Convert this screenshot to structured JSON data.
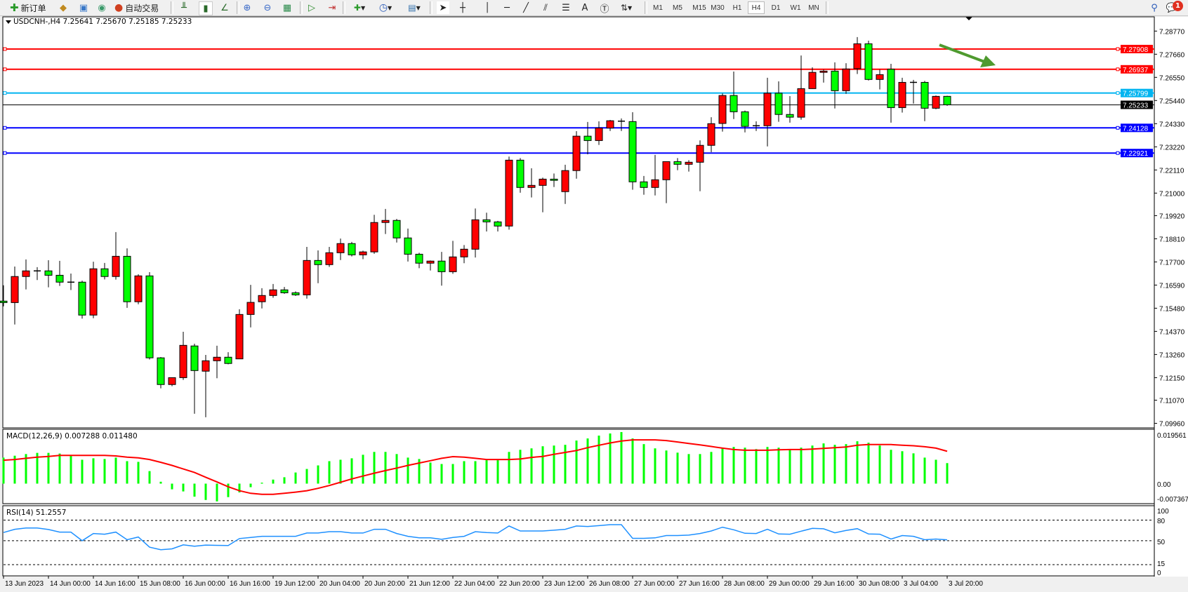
{
  "toolbar": {
    "new_order_label": "新订单",
    "auto_trading_label": "自动交易",
    "timeframes": [
      "M1",
      "M5",
      "M15",
      "M30",
      "H1",
      "H4",
      "D1",
      "W1",
      "MN"
    ],
    "active_timeframe": "H4",
    "notification_count": "1",
    "icons": [
      "new-order-icon",
      "market-watch-icon",
      "navigator-icon",
      "signals-icon",
      "auto-trading-icon",
      "bar-chart-icon",
      "candlestick-icon",
      "line-chart-icon",
      "zoom-in-icon",
      "zoom-out-icon",
      "tile-windows-icon",
      "auto-scroll-icon",
      "chart-shift-icon",
      "indicators-icon",
      "periods-icon",
      "templates-icon",
      "cursor-icon",
      "crosshair-icon",
      "vertical-line-icon",
      "horizontal-line-icon",
      "trendline-icon",
      "channel-icon",
      "fibonacci-icon",
      "text-icon",
      "text-label-icon",
      "arrows-icon",
      "search-icon",
      "chat-icon"
    ]
  },
  "chart": {
    "header": "USDCNH-,H4  7.25641 7.25670 7.25185 7.25233",
    "colors": {
      "up": "#ff0000",
      "down": "#00ff00",
      "outline": "#000000",
      "macd_hist": "#00ff00",
      "signal": "#ff0000",
      "rsi": "#1e90ff",
      "arrow": "#4f9a2f"
    },
    "price_ticks": [
      "7.28770",
      "7.27660",
      "7.26550",
      "7.25440",
      "7.24330",
      "7.23220",
      "7.22110",
      "7.21000",
      "7.19920",
      "7.18810",
      "7.17700",
      "7.16590",
      "7.15480",
      "7.14370",
      "7.13260",
      "7.12150",
      "7.11070",
      "7.09960"
    ],
    "levels": [
      {
        "price": "7.27908",
        "color": "#ff0000"
      },
      {
        "price": "7.26937",
        "color": "#ff0000"
      },
      {
        "price": "7.25799",
        "color": "#00b4f0"
      },
      {
        "price": "7.24128",
        "color": "#0000ff"
      },
      {
        "price": "7.22921",
        "color": "#0000ff"
      }
    ],
    "bid": {
      "price": "7.25233",
      "color": "#000000"
    },
    "candles_ohlc": [
      [
        7.1582,
        7.1658,
        7.1557,
        7.1575
      ],
      [
        7.1575,
        7.1748,
        7.147,
        7.17
      ],
      [
        7.17,
        7.1782,
        7.1638,
        7.1727
      ],
      [
        7.1727,
        7.1745,
        7.1683,
        7.1727
      ],
      [
        7.1727,
        7.1778,
        7.1648,
        7.1706
      ],
      [
        7.1706,
        7.1775,
        7.1655,
        7.1673
      ],
      [
        7.1673,
        7.1714,
        7.1635,
        7.1673
      ],
      [
        7.1673,
        7.168,
        7.1498,
        7.1515
      ],
      [
        7.1515,
        7.1771,
        7.15,
        7.1737
      ],
      [
        7.1737,
        7.1765,
        7.1686,
        7.17
      ],
      [
        7.17,
        7.1913,
        7.1685,
        7.1797
      ],
      [
        7.1797,
        7.1835,
        7.155,
        7.1579
      ],
      [
        7.1579,
        7.1711,
        7.1567,
        7.1703
      ],
      [
        7.1703,
        7.1721,
        7.1302,
        7.131
      ],
      [
        7.131,
        7.1314,
        7.1164,
        7.1182
      ],
      [
        7.1182,
        7.1215,
        7.1174,
        7.1215
      ],
      [
        7.1215,
        7.1435,
        7.1204,
        7.137
      ],
      [
        7.1367,
        7.1378,
        7.1042,
        7.1249
      ],
      [
        7.1246,
        7.1324,
        7.1025,
        7.1296
      ],
      [
        7.1296,
        7.1368,
        7.1212,
        7.1313
      ],
      [
        7.1313,
        7.1337,
        7.1279,
        7.1283
      ],
      [
        7.1305,
        7.1543,
        7.1305,
        7.1518
      ],
      [
        7.1518,
        7.166,
        7.1456,
        7.1576
      ],
      [
        7.1579,
        7.1644,
        7.1547,
        7.1609
      ],
      [
        7.1609,
        7.1664,
        7.1598,
        7.1636
      ],
      [
        7.1636,
        7.165,
        7.1617,
        7.1622
      ],
      [
        7.1622,
        7.1629,
        7.1607,
        7.1612
      ],
      [
        7.1612,
        7.1842,
        7.1594,
        7.1777
      ],
      [
        7.1777,
        7.1825,
        7.1668,
        7.1757
      ],
      [
        7.1757,
        7.1842,
        7.1746,
        7.1814
      ],
      [
        7.1814,
        7.1882,
        7.1779,
        7.1858
      ],
      [
        7.1858,
        7.1866,
        7.1796,
        7.1804
      ],
      [
        7.1804,
        7.1824,
        7.1783,
        7.1818
      ],
      [
        7.1818,
        7.1996,
        7.1809,
        7.1959
      ],
      [
        7.1959,
        7.2024,
        7.1904,
        7.1969
      ],
      [
        7.1969,
        7.1976,
        7.1863,
        7.1885
      ],
      [
        7.1885,
        7.193,
        7.1772,
        7.1807
      ],
      [
        7.1807,
        7.1814,
        7.174,
        7.1764
      ],
      [
        7.1764,
        7.1777,
        7.1729,
        7.1774
      ],
      [
        7.1774,
        7.1818,
        7.1656,
        7.1723
      ],
      [
        7.1723,
        7.1871,
        7.1713,
        7.1794
      ],
      [
        7.1794,
        7.1851,
        7.1764,
        7.1831
      ],
      [
        7.1831,
        7.2026,
        7.1791,
        7.1972
      ],
      [
        7.1972,
        7.2006,
        7.1916,
        7.1962
      ],
      [
        7.1962,
        7.1967,
        7.1916,
        7.1942
      ],
      [
        7.1942,
        7.2275,
        7.1925,
        7.2258
      ],
      [
        7.2258,
        7.2268,
        7.2102,
        7.2127
      ],
      [
        7.2127,
        7.2219,
        7.2079,
        7.2137
      ],
      [
        7.2137,
        7.2174,
        7.2008,
        7.2167
      ],
      [
        7.2167,
        7.2194,
        7.2129,
        7.2161
      ],
      [
        7.2107,
        7.2236,
        7.2048,
        7.2208
      ],
      [
        7.2208,
        7.2397,
        7.2169,
        7.2373
      ],
      [
        7.2373,
        7.2441,
        7.2286,
        7.2352
      ],
      [
        7.2352,
        7.2444,
        7.2331,
        7.2412
      ],
      [
        7.2412,
        7.2451,
        7.2398,
        7.2447
      ],
      [
        7.2445,
        7.2458,
        7.2398,
        7.2445
      ],
      [
        7.2443,
        7.2488,
        7.2116,
        7.2154
      ],
      [
        7.2154,
        7.2182,
        7.2092,
        7.2127
      ],
      [
        7.2127,
        7.2283,
        7.2089,
        7.2164
      ],
      [
        7.2164,
        7.2251,
        7.2052,
        7.2251
      ],
      [
        7.2251,
        7.2268,
        7.221,
        7.2238
      ],
      [
        7.2238,
        7.2258,
        7.2203,
        7.2248
      ],
      [
        7.2248,
        7.2353,
        7.2109,
        7.2329
      ],
      [
        7.2329,
        7.2464,
        7.2296,
        7.2433
      ],
      [
        7.2434,
        7.2578,
        7.2395,
        7.2568
      ],
      [
        7.2568,
        7.2683,
        7.2455,
        7.249
      ],
      [
        7.249,
        7.2496,
        7.2391,
        7.242
      ],
      [
        7.242,
        7.2444,
        7.2398,
        7.2423
      ],
      [
        7.2423,
        7.2653,
        7.2324,
        7.2579
      ],
      [
        7.2579,
        7.2636,
        7.2442,
        7.2477
      ],
      [
        7.2477,
        7.2565,
        7.2438,
        7.2464
      ],
      [
        7.2464,
        7.276,
        7.2452,
        7.2601
      ],
      [
        7.2601,
        7.2703,
        7.26,
        7.2679
      ],
      [
        7.2679,
        7.2692,
        7.263,
        7.2685
      ],
      [
        7.2685,
        7.2727,
        7.2506,
        7.2591
      ],
      [
        7.2591,
        7.2723,
        7.2576,
        7.2695
      ],
      [
        7.2697,
        7.2848,
        7.2671,
        7.2816
      ],
      [
        7.2816,
        7.2831,
        7.264,
        7.2645
      ],
      [
        7.2645,
        7.2692,
        7.2597,
        7.2668
      ],
      [
        7.2694,
        7.272,
        7.2438,
        7.251
      ],
      [
        7.251,
        7.2653,
        7.2486,
        7.2631
      ],
      [
        7.2631,
        7.2643,
        7.2529,
        7.2631
      ],
      [
        7.2631,
        7.2638,
        7.2445,
        7.2507
      ],
      [
        7.2507,
        7.2568,
        7.2502,
        7.2564
      ],
      [
        7.25641,
        7.2567,
        7.25185,
        7.25233
      ]
    ],
    "time_labels": [
      "13 Jun 2023",
      "14 Jun 00:00",
      "14 Jun 16:00",
      "15 Jun 08:00",
      "16 Jun 00:00",
      "16 Jun 16:00",
      "19 Jun 12:00",
      "20 Jun 04:00",
      "20 Jun 20:00",
      "21 Jun 12:00",
      "22 Jun 04:00",
      "22 Jun 20:00",
      "23 Jun 12:00",
      "26 Jun 08:00",
      "27 Jun 00:00",
      "27 Jun 16:00",
      "28 Jun 08:00",
      "29 Jun 00:00",
      "29 Jun 16:00",
      "30 Jun 08:00",
      "3 Jul 04:00",
      "3 Jul 20:00"
    ]
  },
  "macd": {
    "label": "MACD(12,26,9) 0.007288 0.011480",
    "axis_labels": [
      "0.019561",
      "0.00",
      "-0.007367"
    ],
    "histogram": [
      0.00924,
      0.00991,
      0.0105,
      0.01092,
      0.01092,
      0.01067,
      0.00991,
      0.00848,
      0.00899,
      0.00874,
      0.00924,
      0.00798,
      0.00773,
      0.00445,
      0.00067,
      -0.00202,
      -0.00277,
      -0.00462,
      -0.0058,
      -0.0063,
      -0.00479,
      -0.00311,
      -0.00126,
      0.00034,
      0.00143,
      0.00227,
      0.00395,
      0.00521,
      0.00647,
      0.00798,
      0.00848,
      0.00899,
      0.01025,
      0.01126,
      0.01126,
      0.0105,
      0.00924,
      0.00874,
      0.00748,
      0.00697,
      0.00697,
      0.00798,
      0.00798,
      0.00832,
      0.00832,
      0.01126,
      0.01201,
      0.01252,
      0.01327,
      0.01352,
      0.01378,
      0.01529,
      0.01604,
      0.01705,
      0.01781,
      0.01831,
      0.01604,
      0.01403,
      0.01252,
      0.01176,
      0.011,
      0.0105,
      0.0105,
      0.01126,
      0.01277,
      0.01302,
      0.01277,
      0.01226,
      0.01302,
      0.01277,
      0.01201,
      0.01277,
      0.01352,
      0.01428,
      0.01378,
      0.01403,
      0.01504,
      0.01453,
      0.01352,
      0.01201,
      0.01151,
      0.01075,
      0.00924,
      0.00848,
      0.007288
    ],
    "signal": [
      0.00832,
      0.00857,
      0.00899,
      0.00941,
      0.00966,
      0.01,
      0.01,
      0.01,
      0.01,
      0.01,
      0.00983,
      0.00941,
      0.00916,
      0.00857,
      0.00756,
      0.00647,
      0.00521,
      0.00395,
      0.00227,
      0.00059,
      -0.00109,
      -0.00252,
      -0.00344,
      -0.00378,
      -0.00378,
      -0.00344,
      -0.00302,
      -0.00252,
      -0.00168,
      -0.00067,
      0.0005,
      0.00168,
      0.00269,
      0.0037,
      0.00462,
      0.00554,
      0.00647,
      0.00731,
      0.00815,
      0.00899,
      0.00958,
      0.00941,
      0.00899,
      0.00857,
      0.00857,
      0.00857,
      0.00874,
      0.00932,
      0.00966,
      0.01042,
      0.01109,
      0.01176,
      0.01277,
      0.01361,
      0.01445,
      0.01512,
      0.01554,
      0.01554,
      0.01554,
      0.01529,
      0.01478,
      0.01428,
      0.01378,
      0.01319,
      0.0126,
      0.0121,
      0.01184,
      0.01184,
      0.01184,
      0.01201,
      0.0121,
      0.0121,
      0.01226,
      0.01252,
      0.01277,
      0.01302,
      0.01361,
      0.01386,
      0.01386,
      0.01386,
      0.01361,
      0.01344,
      0.0131,
      0.0126,
      0.01148
    ]
  },
  "rsi": {
    "label": "RSI(14) 51.2557",
    "axis_labels": [
      "100",
      "80",
      "50",
      "15",
      "0"
    ],
    "levels": [
      80,
      50,
      15
    ],
    "values": [
      61.9,
      66.6,
      68.6,
      68.6,
      66.3,
      62.5,
      62.5,
      50.0,
      60.5,
      59.5,
      62.5,
      51.4,
      55.4,
      40.5,
      36.8,
      38.1,
      43.9,
      41.9,
      43.6,
      43.2,
      42.9,
      53.1,
      54.7,
      56.4,
      56.4,
      56.4,
      56.4,
      61.2,
      61.2,
      63.2,
      63.2,
      61.2,
      61.2,
      66.6,
      66.6,
      60.5,
      56.4,
      54.1,
      54.1,
      52.0,
      54.7,
      56.4,
      63.2,
      61.9,
      61.2,
      71.4,
      64.2,
      64.2,
      64.2,
      65.3,
      66.6,
      71.4,
      70.7,
      72.0,
      73.4,
      73.4,
      53.4,
      53.4,
      54.1,
      57.5,
      57.5,
      58.1,
      60.5,
      64.2,
      69.7,
      65.9,
      60.8,
      60.5,
      66.6,
      59.8,
      59.5,
      63.9,
      68.0,
      67.3,
      61.5,
      64.9,
      67.6,
      59.8,
      59.5,
      52.4,
      57.5,
      56.4,
      51.4,
      52.4,
      51.26
    ]
  }
}
